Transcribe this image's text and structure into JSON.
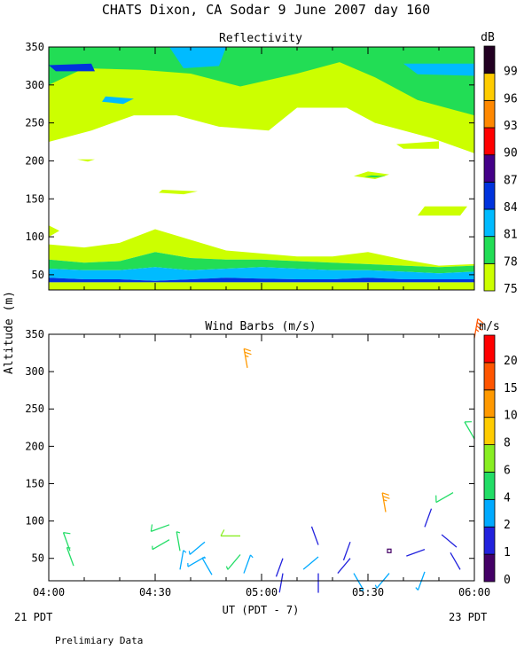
{
  "header": {
    "title": "CHATS Dixon, CA  Sodar    9 June 2007   day 160"
  },
  "footer": {
    "left_date": "21 PDT",
    "right_date": "23 PDT",
    "note": "Prelimiary Data"
  },
  "shared_axes": {
    "ylabel": "Altitude (m)",
    "xlabel": "UT  (PDT - 7)"
  },
  "colors": {
    "reflectivity_levels": [
      "#ccff00",
      "#22dd55",
      "#00bbff",
      "#0033dd",
      "#440088",
      "#ff0000",
      "#ff8800",
      "#ffcc00",
      "#220022"
    ],
    "wind_levels": [
      "#440066",
      "#2222dd",
      "#00aaff",
      "#22dd66",
      "#88ee22",
      "#ffcc00",
      "#ff9900",
      "#ff5500",
      "#ff0000"
    ]
  },
  "chart_data": [
    {
      "type": "heatmap",
      "title": "Reflectivity",
      "unit_label": "dB",
      "x_ticks": [
        "04:00",
        "04:30",
        "05:00",
        "05:30",
        "06:00"
      ],
      "y_ticks": [
        "50",
        "100",
        "150",
        "200",
        "250",
        "300",
        "350"
      ],
      "xlim": [
        0,
        120
      ],
      "ylim": [
        30,
        350
      ],
      "colorbar": {
        "labels": [
          "75",
          "78",
          "81",
          "84",
          "87",
          "90",
          "93",
          "96",
          "99"
        ],
        "level_thresholds": [
          75,
          78,
          81,
          84,
          87,
          90,
          93,
          96,
          99
        ]
      },
      "x_minutes": [
        0,
        10,
        20,
        30,
        40,
        50,
        60,
        70,
        80,
        90,
        100,
        110,
        120
      ],
      "layer_boundaries_m": [
        {
          "level_db": 84,
          "top": [
            46,
            44,
            44,
            42,
            44,
            46,
            45,
            44,
            44,
            46,
            44,
            44,
            44
          ],
          "bottom": [
            40,
            40,
            40,
            40,
            40,
            40,
            40,
            40,
            40,
            40,
            40,
            40,
            40
          ]
        },
        {
          "level_db": 81,
          "top": [
            58,
            56,
            56,
            60,
            56,
            58,
            60,
            58,
            56,
            56,
            54,
            52,
            54
          ],
          "bottom": [
            46,
            44,
            44,
            42,
            44,
            46,
            45,
            44,
            44,
            46,
            44,
            44,
            44
          ]
        },
        {
          "level_db": 78,
          "top": [
            70,
            66,
            68,
            80,
            72,
            70,
            70,
            68,
            66,
            64,
            62,
            60,
            62
          ],
          "bottom": [
            58,
            56,
            56,
            60,
            56,
            58,
            60,
            58,
            56,
            56,
            54,
            52,
            54
          ]
        },
        {
          "level_db": 75,
          "top": [
            90,
            86,
            92,
            110,
            96,
            82,
            78,
            74,
            74,
            80,
            70,
            62,
            64
          ],
          "bottom": [
            70,
            66,
            68,
            80,
            72,
            70,
            70,
            68,
            66,
            64,
            62,
            60,
            62
          ]
        }
      ],
      "upper_patches": [
        {
          "level_db": 75,
          "points_min_m": [
            [
              0,
              350
            ],
            [
              120,
              350
            ],
            [
              120,
              210
            ],
            [
              108,
              230
            ],
            [
              92,
              250
            ],
            [
              84,
              270
            ],
            [
              70,
              270
            ],
            [
              62,
              240
            ],
            [
              48,
              245
            ],
            [
              36,
              260
            ],
            [
              24,
              260
            ],
            [
              12,
              240
            ],
            [
              0,
              225
            ]
          ]
        },
        {
          "level_db": 78,
          "points_min_m": [
            [
              0,
              350
            ],
            [
              120,
              350
            ],
            [
              120,
              260
            ],
            [
              104,
              280
            ],
            [
              92,
              310
            ],
            [
              82,
              330
            ],
            [
              70,
              315
            ],
            [
              54,
              298
            ],
            [
              40,
              315
            ],
            [
              26,
              320
            ],
            [
              10,
              322
            ],
            [
              0,
              300
            ]
          ]
        },
        {
          "level_db": 81,
          "points_min_m": [
            [
              34,
              350
            ],
            [
              50,
              350
            ],
            [
              48,
              325
            ],
            [
              38,
              322
            ]
          ]
        },
        {
          "level_db": 81,
          "points_min_m": [
            [
              100,
              328
            ],
            [
              120,
              328
            ],
            [
              120,
              312
            ],
            [
              104,
              314
            ]
          ]
        },
        {
          "level_db": 81,
          "points_min_m": [
            [
              16,
              285
            ],
            [
              24,
              282
            ],
            [
              21,
              275
            ],
            [
              15,
              278
            ]
          ]
        },
        {
          "level_db": 84,
          "points_min_m": [
            [
              0,
              326
            ],
            [
              12,
              328
            ],
            [
              13,
              318
            ],
            [
              2,
              318
            ]
          ]
        },
        {
          "level_db": 75,
          "points_min_m": [
            [
              32,
              162
            ],
            [
              42,
              160
            ],
            [
              38,
              156
            ],
            [
              31,
              158
            ]
          ]
        },
        {
          "level_db": 75,
          "points_min_m": [
            [
              90,
              186
            ],
            [
              96,
              182
            ],
            [
              92,
              176
            ],
            [
              86,
              180
            ]
          ]
        },
        {
          "level_db": 78,
          "points_min_m": [
            [
              91,
              181
            ],
            [
              95,
              180
            ],
            [
              92,
              178
            ],
            [
              89,
              179
            ]
          ]
        },
        {
          "level_db": 75,
          "points_min_m": [
            [
              98,
              222
            ],
            [
              110,
              226
            ],
            [
              110,
              216
            ],
            [
              100,
              216
            ]
          ]
        },
        {
          "level_db": 75,
          "points_min_m": [
            [
              8,
              202
            ],
            [
              13,
              202
            ],
            [
              11,
              199
            ]
          ]
        },
        {
          "level_db": 75,
          "points_min_m": [
            [
              106,
              140
            ],
            [
              118,
              140
            ],
            [
              116,
              128
            ],
            [
              104,
              128
            ]
          ]
        },
        {
          "level_db": 75,
          "points_min_m": [
            [
              0,
              115
            ],
            [
              3,
              108
            ],
            [
              0,
              100
            ]
          ]
        }
      ]
    },
    {
      "type": "scatter",
      "title": "Wind Barbs (m/s)",
      "unit_label": "m/s",
      "x_ticks": [
        "04:00",
        "04:30",
        "05:00",
        "05:30",
        "06:00"
      ],
      "y_ticks": [
        "50",
        "100",
        "150",
        "200",
        "250",
        "300",
        "350"
      ],
      "xlim": [
        0,
        120
      ],
      "ylim": [
        20,
        350
      ],
      "colorbar": {
        "labels": [
          "0",
          "1",
          "2",
          "4",
          "6",
          "8",
          "10",
          "15",
          "20"
        ],
        "level_thresholds": [
          0,
          1,
          2,
          4,
          6,
          8,
          10,
          15,
          20
        ]
      },
      "barbs": [
        {
          "t_min": 6,
          "alt_m": 60,
          "speed": 4.5,
          "dir_deg": 340
        },
        {
          "t_min": 7,
          "alt_m": 40,
          "speed": 4.2,
          "dir_deg": 340
        },
        {
          "t_min": 34,
          "alt_m": 95,
          "speed": 4.6,
          "dir_deg": 250
        },
        {
          "t_min": 34,
          "alt_m": 75,
          "speed": 4.4,
          "dir_deg": 240
        },
        {
          "t_min": 37,
          "alt_m": 60,
          "speed": 4.0,
          "dir_deg": 350
        },
        {
          "t_min": 37,
          "alt_m": 35,
          "speed": 3.0,
          "dir_deg": 10
        },
        {
          "t_min": 44,
          "alt_m": 72,
          "speed": 3.5,
          "dir_deg": 230
        },
        {
          "t_min": 44,
          "alt_m": 52,
          "speed": 3.5,
          "dir_deg": 240
        },
        {
          "t_min": 46,
          "alt_m": 28,
          "speed": 2.5,
          "dir_deg": 330
        },
        {
          "t_min": 54,
          "alt_m": 80,
          "speed": 6.0,
          "dir_deg": 270
        },
        {
          "t_min": 54,
          "alt_m": 55,
          "speed": 4.0,
          "dir_deg": 220
        },
        {
          "t_min": 55,
          "alt_m": 30,
          "speed": 2.6,
          "dir_deg": 20
        },
        {
          "t_min": 56,
          "alt_m": 305,
          "speed": 14.0,
          "dir_deg": 350
        },
        {
          "t_min": 66,
          "alt_m": 50,
          "speed": 1.5,
          "dir_deg": 200
        },
        {
          "t_min": 66,
          "alt_m": 30,
          "speed": 1.8,
          "dir_deg": 190
        },
        {
          "t_min": 76,
          "alt_m": 68,
          "speed": 1.5,
          "dir_deg": 340
        },
        {
          "t_min": 76,
          "alt_m": 52,
          "speed": 2.2,
          "dir_deg": 230
        },
        {
          "t_min": 76,
          "alt_m": 30,
          "speed": 1.5,
          "dir_deg": 180
        },
        {
          "t_min": 85,
          "alt_m": 72,
          "speed": 1.5,
          "dir_deg": 200
        },
        {
          "t_min": 85,
          "alt_m": 50,
          "speed": 1.5,
          "dir_deg": 220
        },
        {
          "t_min": 86,
          "alt_m": 30,
          "speed": 2.5,
          "dir_deg": 150
        },
        {
          "t_min": 95,
          "alt_m": 112,
          "speed": 14.0,
          "dir_deg": 350
        },
        {
          "t_min": 96,
          "alt_m": 60,
          "speed": 0.5,
          "dir_deg": 0
        },
        {
          "t_min": 96,
          "alt_m": 30,
          "speed": 2.5,
          "dir_deg": 220
        },
        {
          "t_min": 106,
          "alt_m": 92,
          "speed": 1.5,
          "dir_deg": 20
        },
        {
          "t_min": 106,
          "alt_m": 62,
          "speed": 1.5,
          "dir_deg": 250
        },
        {
          "t_min": 106,
          "alt_m": 32,
          "speed": 2.5,
          "dir_deg": 200
        },
        {
          "t_min": 114,
          "alt_m": 138,
          "speed": 4.5,
          "dir_deg": 240
        },
        {
          "t_min": 115,
          "alt_m": 65,
          "speed": 1.5,
          "dir_deg": 310
        },
        {
          "t_min": 116,
          "alt_m": 35,
          "speed": 1.5,
          "dir_deg": 330
        },
        {
          "t_min": 120,
          "alt_m": 345,
          "speed": 19.0,
          "dir_deg": 10
        },
        {
          "t_min": 120,
          "alt_m": 210,
          "speed": 4.5,
          "dir_deg": 330
        }
      ]
    }
  ]
}
